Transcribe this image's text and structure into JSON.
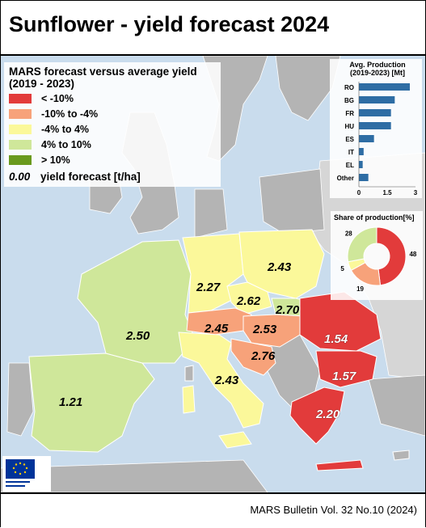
{
  "title": "Sunflower - yield forecast 2024",
  "footer": "MARS Bulletin Vol. 32 No.10 (2024)",
  "legend": {
    "title_line1": "MARS forecast versus average yield",
    "title_line2": "(2019 - 2023)",
    "classes": [
      {
        "label": "< -10%",
        "color": "#e23b3b"
      },
      {
        "label": "-10% to -4%",
        "color": "#f7a27a"
      },
      {
        "label": "-4% to 4%",
        "color": "#fbf89a"
      },
      {
        "label": "4% to 10%",
        "color": "#cfe79a"
      },
      {
        "label": "> 10%",
        "color": "#6a9a1e"
      }
    ],
    "value_sample": "0.00",
    "value_label": "yield forecast [t/ha]"
  },
  "regions": [
    {
      "name": "Spain",
      "yield": "1.21",
      "class_color": "#cfe79a"
    },
    {
      "name": "France",
      "yield": "2.50",
      "class_color": "#cfe79a"
    },
    {
      "name": "Germany",
      "yield": "2.27",
      "class_color": "#fbf89a"
    },
    {
      "name": "Poland",
      "yield": "2.43",
      "class_color": "#fbf89a"
    },
    {
      "name": "Czechia",
      "yield": "2.62",
      "class_color": "#fbf89a"
    },
    {
      "name": "Slovakia",
      "yield": "2.70",
      "class_color": "#cfe79a"
    },
    {
      "name": "Austria",
      "yield": "2.45",
      "class_color": "#f7a27a"
    },
    {
      "name": "Hungary",
      "yield": "2.53",
      "class_color": "#f7a27a"
    },
    {
      "name": "Croatia",
      "yield": "2.76",
      "class_color": "#f7a27a"
    },
    {
      "name": "Italy",
      "yield": "2.43",
      "class_color": "#fbf89a"
    },
    {
      "name": "Romania",
      "yield": "1.54",
      "class_color": "#e23b3b"
    },
    {
      "name": "Bulgaria",
      "yield": "1.57",
      "class_color": "#e23b3b"
    },
    {
      "name": "Greece",
      "yield": "2.20",
      "class_color": "#e23b3b"
    }
  ],
  "production_panel": {
    "title_line1": "Avg. Production",
    "title_line2": "(2019-2023) [Mt]",
    "bar_color": "#2e6da4",
    "xticks": [
      "0",
      "1.5",
      "3"
    ],
    "xlim": [
      0,
      3
    ]
  },
  "share_panel": {
    "title": "Share of production[%]"
  },
  "chart_data": [
    {
      "type": "bar",
      "categories": [
        "RO",
        "BG",
        "FR",
        "HU",
        "ES",
        "IT",
        "EL",
        "Other"
      ],
      "values": [
        2.7,
        1.9,
        1.7,
        1.7,
        0.8,
        0.25,
        0.2,
        0.5
      ],
      "xlim": [
        0,
        3
      ],
      "title": "Avg. Production (2019-2023) [Mt]"
    },
    {
      "type": "pie",
      "title": "Share of production[%]",
      "values": [
        48,
        19,
        5,
        28
      ],
      "colors": [
        "#e23b3b",
        "#f7a27a",
        "#fbf89a",
        "#cfe79a"
      ]
    }
  ]
}
